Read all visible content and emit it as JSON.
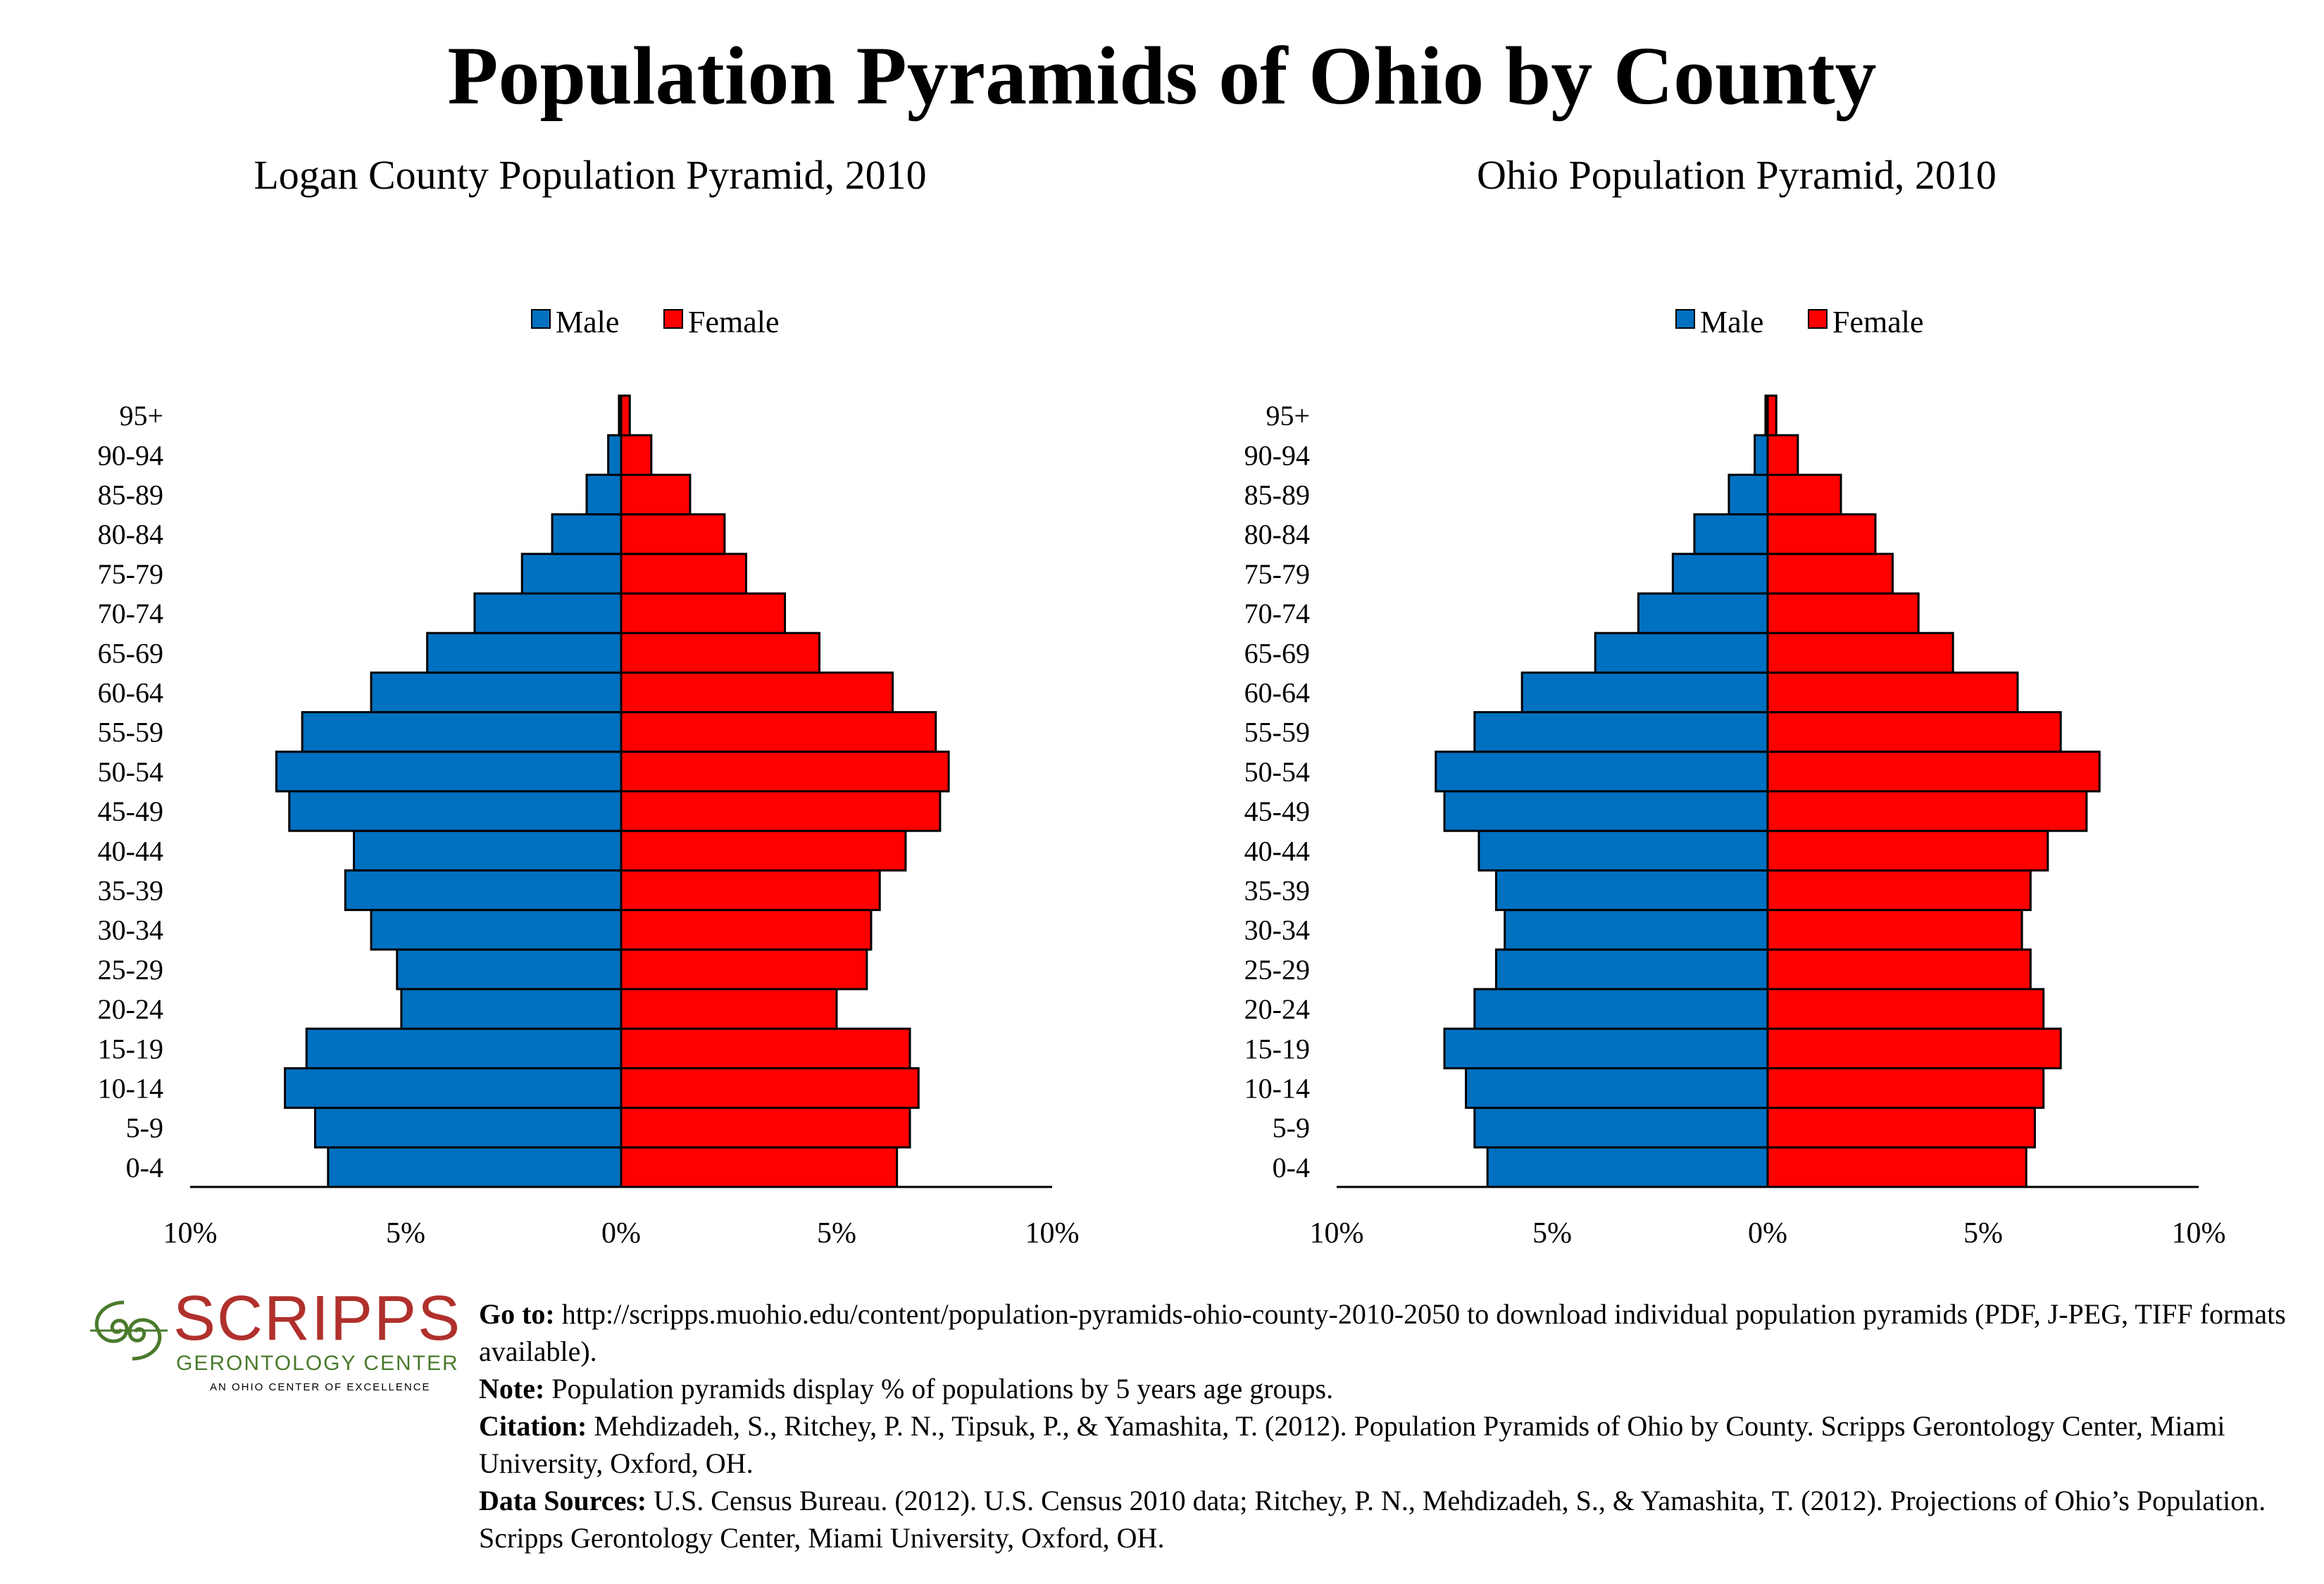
{
  "title": "Population Pyramids of Ohio by County",
  "colors": {
    "male": "#0070c0",
    "female": "#ff0000",
    "logo_red": "#b0302c",
    "logo_green": "#4a7a2c"
  },
  "legend": {
    "male": "Male",
    "female": "Female"
  },
  "chart_data": [
    {
      "type": "bar",
      "orientation": "horizontal-pyramid",
      "title": "Logan County Population Pyramid, 2010",
      "categories": [
        "0-4",
        "5-9",
        "10-14",
        "15-19",
        "20-24",
        "25-29",
        "30-34",
        "35-39",
        "40-44",
        "45-49",
        "50-54",
        "55-59",
        "60-64",
        "65-69",
        "70-74",
        "75-79",
        "80-84",
        "85-89",
        "90-94",
        "95+"
      ],
      "series": [
        {
          "name": "Male",
          "values": [
            6.8,
            7.1,
            7.8,
            7.3,
            5.1,
            5.2,
            5.8,
            6.4,
            6.2,
            7.7,
            8.0,
            7.4,
            5.8,
            4.5,
            3.4,
            2.3,
            1.6,
            0.8,
            0.3,
            0.05
          ]
        },
        {
          "name": "Female",
          "values": [
            6.4,
            6.7,
            6.9,
            6.7,
            5.0,
            5.7,
            5.8,
            6.0,
            6.6,
            7.4,
            7.6,
            7.3,
            6.3,
            4.6,
            3.8,
            2.9,
            2.4,
            1.6,
            0.7,
            0.2
          ]
        }
      ],
      "xlim": [
        -10,
        10
      ],
      "x_ticks": [
        "10%",
        "5%",
        "0%",
        "5%",
        "10%"
      ],
      "legend_position": "top-center",
      "grid": false
    },
    {
      "type": "bar",
      "orientation": "horizontal-pyramid",
      "title": "Ohio Population Pyramid, 2010",
      "categories": [
        "0-4",
        "5-9",
        "10-14",
        "15-19",
        "20-24",
        "25-29",
        "30-34",
        "35-39",
        "40-44",
        "45-49",
        "50-54",
        "55-59",
        "60-64",
        "65-69",
        "70-74",
        "75-79",
        "80-84",
        "85-89",
        "90-94",
        "95+"
      ],
      "series": [
        {
          "name": "Male",
          "values": [
            6.5,
            6.8,
            7.0,
            7.5,
            6.8,
            6.3,
            6.1,
            6.3,
            6.7,
            7.5,
            7.7,
            6.8,
            5.7,
            4.0,
            3.0,
            2.2,
            1.7,
            0.9,
            0.3,
            0.05
          ]
        },
        {
          "name": "Female",
          "values": [
            6.0,
            6.2,
            6.4,
            6.8,
            6.4,
            6.1,
            5.9,
            6.1,
            6.5,
            7.4,
            7.7,
            6.8,
            5.8,
            4.3,
            3.5,
            2.9,
            2.5,
            1.7,
            0.7,
            0.2
          ]
        }
      ],
      "xlim": [
        -10,
        10
      ],
      "x_ticks": [
        "10%",
        "5%",
        "0%",
        "5%",
        "10%"
      ],
      "legend_position": "top-center",
      "grid": false
    }
  ],
  "logo": {
    "name": "SCRIPPS",
    "subtitle": "GERONTOLOGY CENTER",
    "tagline": "AN OHIO CENTER OF EXCELLENCE"
  },
  "notes": {
    "goto_label": "Go to:",
    "goto_text": "http://scripps.muohio.edu/content/population-pyramids-ohio-county-2010-2050 to download individual population pyramids (PDF, J-PEG, TIFF formats available).",
    "note_label": "Note:",
    "note_text": "Population pyramids display % of populations by 5 years age groups.",
    "citation_label": "Citation:",
    "citation_text": "Mehdizadeh, S., Ritchey, P. N., Tipsuk, P., & Yamashita, T. (2012). Population Pyramids of Ohio by County. Scripps Gerontology Center, Miami University, Oxford, OH.",
    "sources_label": "Data Sources:",
    "sources_text": "U.S. Census Bureau. (2012). U.S. Census 2010 data; Ritchey, P. N., Mehdizadeh, S., & Yamashita, T. (2012). Projections of Ohio’s Population. Scripps Gerontology Center, Miami University, Oxford, OH."
  }
}
